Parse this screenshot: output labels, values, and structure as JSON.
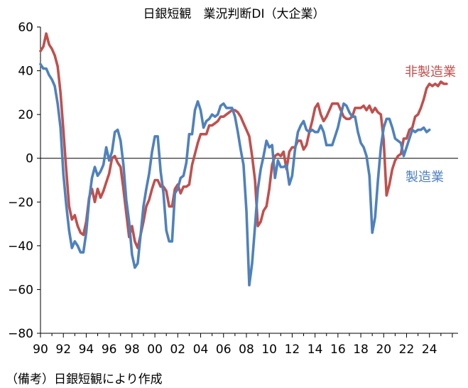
{
  "chart_data": {
    "type": "line",
    "title": "日銀短観　業況判断DI（大企業）",
    "xlabel": "",
    "ylabel": "",
    "xlim": [
      1990,
      2026.5
    ],
    "ylim": [
      -80,
      60
    ],
    "yticks": [
      60,
      40,
      20,
      0,
      -20,
      -40,
      -60,
      -80
    ],
    "y_tick_labels": [
      "60",
      "40",
      "20",
      "0",
      "−20",
      "−40",
      "−60",
      "−80"
    ],
    "x_tick_labels": [
      "90",
      "92",
      "94",
      "96",
      "98",
      "00",
      "02",
      "04",
      "06",
      "08",
      "10",
      "12",
      "14",
      "16",
      "18",
      "20",
      "22",
      "24"
    ],
    "grid": false,
    "legend": "inline labels at right",
    "series": [
      {
        "name": "非製造業",
        "color": "#c0504d",
        "points": [
          [
            1990.0,
            49
          ],
          [
            1990.25,
            51
          ],
          [
            1990.5,
            57
          ],
          [
            1990.75,
            52
          ],
          [
            1991.0,
            50
          ],
          [
            1991.25,
            47
          ],
          [
            1991.5,
            42
          ],
          [
            1991.75,
            30
          ],
          [
            1992.0,
            13
          ],
          [
            1992.25,
            -5
          ],
          [
            1992.5,
            -22
          ],
          [
            1992.75,
            -28
          ],
          [
            1993.0,
            -26
          ],
          [
            1993.25,
            -31
          ],
          [
            1993.5,
            -34
          ],
          [
            1993.75,
            -35
          ],
          [
            1994.0,
            -29
          ],
          [
            1994.25,
            -18
          ],
          [
            1994.5,
            -14
          ],
          [
            1994.75,
            -20
          ],
          [
            1995.0,
            -14
          ],
          [
            1995.25,
            -18
          ],
          [
            1995.5,
            -15
          ],
          [
            1995.75,
            -11
          ],
          [
            1996.0,
            -7
          ],
          [
            1996.25,
            0
          ],
          [
            1996.5,
            1
          ],
          [
            1996.75,
            -2
          ],
          [
            1997.0,
            -4
          ],
          [
            1997.25,
            -14
          ],
          [
            1997.5,
            -25
          ],
          [
            1997.75,
            -36
          ],
          [
            1998.0,
            -31
          ],
          [
            1998.25,
            -38
          ],
          [
            1998.5,
            -41
          ],
          [
            1998.75,
            -35
          ],
          [
            1999.0,
            -29
          ],
          [
            1999.25,
            -22
          ],
          [
            1999.5,
            -19
          ],
          [
            1999.75,
            -14
          ],
          [
            2000.0,
            -10
          ],
          [
            2000.25,
            -10
          ],
          [
            2000.5,
            -13
          ],
          [
            2000.75,
            -13
          ],
          [
            2001.0,
            -15
          ],
          [
            2001.25,
            -22
          ],
          [
            2001.5,
            -22
          ],
          [
            2001.75,
            -14
          ],
          [
            2002.0,
            -12
          ],
          [
            2002.25,
            -16
          ],
          [
            2002.5,
            -13
          ],
          [
            2002.75,
            -13
          ],
          [
            2003.0,
            -12
          ],
          [
            2003.25,
            -3
          ],
          [
            2003.5,
            2
          ],
          [
            2003.75,
            7
          ],
          [
            2004.0,
            11
          ],
          [
            2004.25,
            11
          ],
          [
            2004.5,
            11
          ],
          [
            2004.75,
            15
          ],
          [
            2005.0,
            15
          ],
          [
            2005.25,
            16
          ],
          [
            2005.5,
            17
          ],
          [
            2005.75,
            19
          ],
          [
            2006.0,
            19
          ],
          [
            2006.25,
            20
          ],
          [
            2006.5,
            21
          ],
          [
            2006.75,
            22
          ],
          [
            2007.0,
            22
          ],
          [
            2007.25,
            21
          ],
          [
            2007.5,
            19
          ],
          [
            2007.75,
            16
          ],
          [
            2008.0,
            13
          ],
          [
            2008.25,
            10
          ],
          [
            2008.5,
            1
          ],
          [
            2008.75,
            -10
          ],
          [
            2009.0,
            -31
          ],
          [
            2009.25,
            -29
          ],
          [
            2009.5,
            -24
          ],
          [
            2009.75,
            -22
          ],
          [
            2010.0,
            -14
          ],
          [
            2010.25,
            -3
          ],
          [
            2010.5,
            1
          ],
          [
            2010.75,
            2
          ],
          [
            2011.0,
            1
          ],
          [
            2011.25,
            3
          ],
          [
            2011.5,
            -5
          ],
          [
            2011.75,
            3
          ],
          [
            2012.0,
            5
          ],
          [
            2012.25,
            5
          ],
          [
            2012.5,
            8
          ],
          [
            2012.75,
            8
          ],
          [
            2013.0,
            4
          ],
          [
            2013.25,
            6
          ],
          [
            2013.5,
            12
          ],
          [
            2013.75,
            17
          ],
          [
            2014.0,
            23
          ],
          [
            2014.25,
            25
          ],
          [
            2014.5,
            20
          ],
          [
            2014.75,
            17
          ],
          [
            2015.0,
            19
          ],
          [
            2015.25,
            22
          ],
          [
            2015.5,
            25
          ],
          [
            2015.75,
            25
          ],
          [
            2016.0,
            25
          ],
          [
            2016.25,
            22
          ],
          [
            2016.5,
            19
          ],
          [
            2016.75,
            18
          ],
          [
            2017.0,
            18
          ],
          [
            2017.25,
            19
          ],
          [
            2017.5,
            23
          ],
          [
            2017.75,
            23
          ],
          [
            2018.0,
            23
          ],
          [
            2018.25,
            24
          ],
          [
            2018.5,
            22
          ],
          [
            2018.75,
            24
          ],
          [
            2019.0,
            21
          ],
          [
            2019.25,
            23
          ],
          [
            2019.5,
            21
          ],
          [
            2019.75,
            20
          ],
          [
            2020.0,
            8
          ],
          [
            2020.25,
            -17
          ],
          [
            2020.5,
            -12
          ],
          [
            2020.75,
            -5
          ],
          [
            2021.0,
            -1
          ],
          [
            2021.25,
            1
          ],
          [
            2021.5,
            2
          ],
          [
            2021.75,
            9
          ],
          [
            2022.0,
            9
          ],
          [
            2022.25,
            13
          ],
          [
            2022.5,
            14
          ],
          [
            2022.75,
            19
          ],
          [
            2023.0,
            20
          ],
          [
            2023.25,
            23
          ],
          [
            2023.5,
            27
          ],
          [
            2023.75,
            32
          ],
          [
            2024.0,
            34
          ],
          [
            2024.25,
            33
          ],
          [
            2024.5,
            34
          ],
          [
            2024.75,
            33
          ],
          [
            2025.0,
            35
          ],
          [
            2025.25,
            34
          ],
          [
            2025.5,
            34
          ]
        ]
      },
      {
        "name": "製造業",
        "color": "#4f81bd",
        "points": [
          [
            1990.0,
            43
          ],
          [
            1990.25,
            41
          ],
          [
            1990.5,
            41
          ],
          [
            1990.75,
            38
          ],
          [
            1991.0,
            36
          ],
          [
            1991.25,
            33
          ],
          [
            1991.5,
            25
          ],
          [
            1991.75,
            14
          ],
          [
            1992.0,
            -7
          ],
          [
            1992.25,
            -21
          ],
          [
            1992.5,
            -33
          ],
          [
            1992.75,
            -41
          ],
          [
            1993.0,
            -38
          ],
          [
            1993.25,
            -40
          ],
          [
            1993.5,
            -43
          ],
          [
            1993.75,
            -43
          ],
          [
            1994.0,
            -34
          ],
          [
            1994.25,
            -19
          ],
          [
            1994.5,
            -9
          ],
          [
            1994.75,
            -4
          ],
          [
            1995.0,
            -8
          ],
          [
            1995.25,
            -6
          ],
          [
            1995.5,
            -3
          ],
          [
            1995.75,
            5
          ],
          [
            1996.0,
            -1
          ],
          [
            1996.25,
            3
          ],
          [
            1996.5,
            12
          ],
          [
            1996.75,
            13
          ],
          [
            1997.0,
            8
          ],
          [
            1997.25,
            -3
          ],
          [
            1997.5,
            -19
          ],
          [
            1997.75,
            -29
          ],
          [
            1998.0,
            -44
          ],
          [
            1998.25,
            -50
          ],
          [
            1998.5,
            -48
          ],
          [
            1998.75,
            -35
          ],
          [
            1999.0,
            -22
          ],
          [
            1999.25,
            -14
          ],
          [
            1999.5,
            -7
          ],
          [
            1999.75,
            3
          ],
          [
            2000.0,
            10
          ],
          [
            2000.25,
            10
          ],
          [
            2000.5,
            -6
          ],
          [
            2000.75,
            -16
          ],
          [
            2001.0,
            -33
          ],
          [
            2001.25,
            -38
          ],
          [
            2001.5,
            -38
          ],
          [
            2001.75,
            -16
          ],
          [
            2002.0,
            -14
          ],
          [
            2002.25,
            -9
          ],
          [
            2002.5,
            -8
          ],
          [
            2002.75,
            -2
          ],
          [
            2003.0,
            11
          ],
          [
            2003.25,
            11
          ],
          [
            2003.5,
            22
          ],
          [
            2003.75,
            26
          ],
          [
            2004.0,
            22
          ],
          [
            2004.25,
            14
          ],
          [
            2004.5,
            17
          ],
          [
            2004.75,
            18
          ],
          [
            2005.0,
            20
          ],
          [
            2005.25,
            19
          ],
          [
            2005.5,
            20
          ],
          [
            2005.75,
            24
          ],
          [
            2006.0,
            25
          ],
          [
            2006.25,
            23
          ],
          [
            2006.5,
            23
          ],
          [
            2006.75,
            23
          ],
          [
            2007.0,
            19
          ],
          [
            2007.25,
            12
          ],
          [
            2007.5,
            4
          ],
          [
            2007.75,
            -3
          ],
          [
            2008.0,
            -24
          ],
          [
            2008.25,
            -58
          ],
          [
            2008.5,
            -48
          ],
          [
            2008.75,
            -31
          ],
          [
            2009.0,
            -14
          ],
          [
            2009.25,
            -5
          ],
          [
            2009.5,
            1
          ],
          [
            2009.75,
            8
          ],
          [
            2010.0,
            5
          ],
          [
            2010.25,
            6
          ],
          [
            2010.5,
            -9
          ],
          [
            2010.75,
            -1
          ],
          [
            2011.0,
            -4
          ],
          [
            2011.25,
            -4
          ],
          [
            2011.5,
            -3
          ],
          [
            2011.75,
            -12
          ],
          [
            2012.0,
            -8
          ],
          [
            2012.25,
            4
          ],
          [
            2012.5,
            12
          ],
          [
            2012.75,
            15
          ],
          [
            2013.0,
            17
          ],
          [
            2013.25,
            13
          ],
          [
            2013.5,
            12
          ],
          [
            2013.75,
            13
          ],
          [
            2014.0,
            12
          ],
          [
            2014.25,
            12
          ],
          [
            2014.5,
            15
          ],
          [
            2014.75,
            12
          ],
          [
            2015.0,
            6
          ],
          [
            2015.25,
            6
          ],
          [
            2015.5,
            6
          ],
          [
            2015.75,
            10
          ],
          [
            2016.0,
            14
          ],
          [
            2016.25,
            20
          ],
          [
            2016.5,
            25
          ],
          [
            2016.75,
            24
          ],
          [
            2017.0,
            21
          ],
          [
            2017.25,
            19
          ],
          [
            2017.5,
            19
          ],
          [
            2017.75,
            12
          ],
          [
            2018.0,
            7
          ],
          [
            2018.25,
            5
          ],
          [
            2018.5,
            1
          ],
          [
            2018.75,
            -8
          ],
          [
            2019.0,
            -34
          ],
          [
            2019.25,
            -27
          ],
          [
            2019.5,
            -10
          ],
          [
            2019.75,
            5
          ],
          [
            2020.0,
            14
          ],
          [
            2020.25,
            18
          ],
          [
            2020.5,
            18
          ],
          [
            2020.75,
            14
          ],
          [
            2021.0,
            9
          ],
          [
            2021.25,
            8
          ],
          [
            2021.5,
            7
          ],
          [
            2021.75,
            1
          ],
          [
            2022.0,
            5
          ],
          [
            2022.25,
            9
          ],
          [
            2022.5,
            13
          ],
          [
            2022.75,
            12
          ],
          [
            2023.0,
            13
          ],
          [
            2023.25,
            13
          ],
          [
            2023.5,
            14
          ],
          [
            2023.75,
            12
          ],
          [
            2024.0,
            13
          ]
        ]
      }
    ]
  },
  "labels": {
    "series_nonmfg": "非製造業",
    "series_mfg": "製造業",
    "note": "（備考）日銀短観により作成"
  }
}
